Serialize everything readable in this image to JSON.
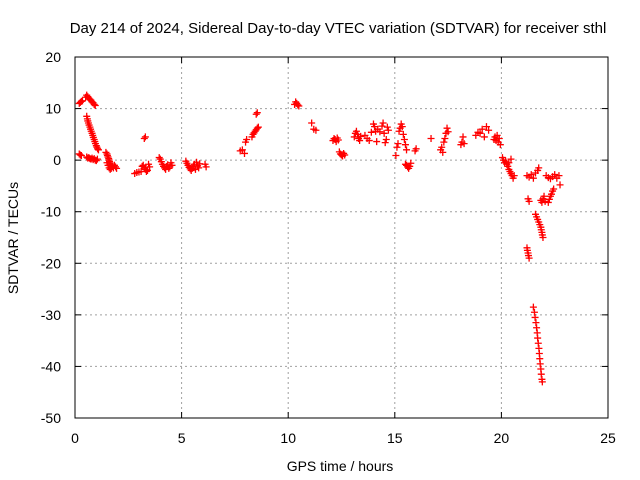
{
  "chart_data": {
    "type": "scatter",
    "title": "Day 214 of 2024, Sidereal Day-to-day VTEC variation (SDTVAR) for receiver sthl",
    "xlabel": "GPS time / hours",
    "ylabel": "SDTVAR / TECUs",
    "xlim": [
      0,
      25
    ],
    "ylim": [
      -50,
      20
    ],
    "xticks": [
      0,
      5,
      10,
      15,
      20,
      25
    ],
    "yticks": [
      -50,
      -40,
      -30,
      -20,
      -10,
      0,
      10,
      20
    ],
    "grid": true,
    "marker": "+",
    "color": "#ff0000",
    "series": [
      {
        "name": "sthl",
        "points": [
          [
            0.2,
            11
          ],
          [
            0.25,
            11.2
          ],
          [
            0.3,
            11.4
          ],
          [
            0.35,
            11.5
          ],
          [
            0.5,
            12.2
          ],
          [
            0.55,
            12.6
          ],
          [
            0.6,
            12.3
          ],
          [
            0.65,
            12.0
          ],
          [
            0.7,
            11.8
          ],
          [
            0.75,
            11.6
          ],
          [
            0.8,
            11.3
          ],
          [
            0.85,
            11.1
          ],
          [
            0.9,
            10.8
          ],
          [
            0.95,
            10.6
          ],
          [
            0.55,
            8.5
          ],
          [
            0.58,
            8.0
          ],
          [
            0.6,
            7.6
          ],
          [
            0.63,
            7.2
          ],
          [
            0.66,
            6.8
          ],
          [
            0.7,
            6.4
          ],
          [
            0.73,
            6.0
          ],
          [
            0.76,
            5.6
          ],
          [
            0.8,
            5.2
          ],
          [
            0.83,
            4.8
          ],
          [
            0.86,
            4.4
          ],
          [
            0.9,
            4.0
          ],
          [
            0.93,
            3.6
          ],
          [
            0.96,
            3.2
          ],
          [
            1.0,
            2.8
          ],
          [
            1.03,
            2.5
          ],
          [
            1.06,
            2.2
          ],
          [
            1.1,
            2.0
          ],
          [
            0.2,
            1.2
          ],
          [
            0.25,
            1.0
          ],
          [
            0.3,
            0.9
          ],
          [
            0.55,
            0.6
          ],
          [
            0.6,
            0.4
          ],
          [
            0.65,
            0.5
          ],
          [
            0.7,
            0.3
          ],
          [
            0.75,
            0.2
          ],
          [
            0.8,
            0.4
          ],
          [
            0.85,
            0.1
          ],
          [
            0.9,
            0.3
          ],
          [
            0.95,
            0.0
          ],
          [
            1.0,
            -0.1
          ],
          [
            1.05,
            0.2
          ],
          [
            1.45,
            1.5
          ],
          [
            1.5,
            1.2
          ],
          [
            1.52,
            0.9
          ],
          [
            1.55,
            0.6
          ],
          [
            1.58,
            0.3
          ],
          [
            1.6,
            0.0
          ],
          [
            1.62,
            -0.3
          ],
          [
            1.65,
            -0.6
          ],
          [
            1.68,
            -0.9
          ],
          [
            1.7,
            -1.2
          ],
          [
            1.5,
            -0.5
          ],
          [
            1.55,
            -1.0
          ],
          [
            1.6,
            -1.5
          ],
          [
            1.65,
            -1.8
          ],
          [
            1.7,
            -1.6
          ],
          [
            1.75,
            -1.2
          ],
          [
            1.8,
            -1.5
          ],
          [
            1.85,
            -1.0
          ],
          [
            1.9,
            -1.3
          ],
          [
            1.95,
            -1.6
          ],
          [
            2.8,
            -2.6
          ],
          [
            2.9,
            -2.4
          ],
          [
            3.0,
            -2.3
          ],
          [
            3.1,
            -2.2
          ],
          [
            3.15,
            -1.2
          ],
          [
            3.2,
            -1.0
          ],
          [
            3.25,
            -1.5
          ],
          [
            3.3,
            -1.8
          ],
          [
            3.35,
            -2.2
          ],
          [
            3.4,
            -2.0
          ],
          [
            3.45,
            -0.8
          ],
          [
            3.5,
            -1.3
          ],
          [
            3.25,
            4.2
          ],
          [
            3.3,
            4.5
          ],
          [
            3.95,
            0.5
          ],
          [
            4.0,
            0.2
          ],
          [
            4.05,
            -0.3
          ],
          [
            4.1,
            -0.8
          ],
          [
            4.15,
            -1.2
          ],
          [
            4.2,
            -1.5
          ],
          [
            4.25,
            -1.8
          ],
          [
            4.3,
            -1.2
          ],
          [
            4.35,
            -0.9
          ],
          [
            4.4,
            -1.6
          ],
          [
            4.45,
            -1.3
          ],
          [
            4.5,
            -0.5
          ],
          [
            4.55,
            -1.0
          ],
          [
            5.2,
            -0.2
          ],
          [
            5.25,
            -0.6
          ],
          [
            5.3,
            -1.0
          ],
          [
            5.35,
            -1.4
          ],
          [
            5.4,
            -1.7
          ],
          [
            5.45,
            -2.0
          ],
          [
            5.5,
            -1.6
          ],
          [
            5.55,
            -1.2
          ],
          [
            5.6,
            -0.8
          ],
          [
            5.65,
            -1.8
          ],
          [
            5.7,
            -0.4
          ],
          [
            5.75,
            -1.1
          ],
          [
            5.8,
            -1.5
          ],
          [
            5.85,
            -0.7
          ],
          [
            6.1,
            -0.8
          ],
          [
            6.15,
            -1.3
          ],
          [
            7.75,
            1.8
          ],
          [
            7.85,
            2.0
          ],
          [
            7.95,
            1.3
          ],
          [
            8.0,
            3.5
          ],
          [
            8.05,
            4.0
          ],
          [
            8.3,
            4.5
          ],
          [
            8.35,
            5.0
          ],
          [
            8.4,
            5.3
          ],
          [
            8.45,
            5.6
          ],
          [
            8.5,
            5.9
          ],
          [
            8.55,
            6.2
          ],
          [
            8.6,
            6.4
          ],
          [
            8.5,
            8.9
          ],
          [
            8.55,
            9.2
          ],
          [
            10.3,
            10.8
          ],
          [
            10.35,
            11.3
          ],
          [
            10.4,
            11.0
          ],
          [
            10.45,
            10.7
          ],
          [
            10.5,
            10.5
          ],
          [
            11.1,
            7.2
          ],
          [
            11.2,
            6.0
          ],
          [
            11.3,
            5.8
          ],
          [
            12.1,
            3.8
          ],
          [
            12.15,
            4.2
          ],
          [
            12.2,
            4.0
          ],
          [
            12.25,
            3.6
          ],
          [
            12.3,
            4.3
          ],
          [
            12.35,
            3.9
          ],
          [
            12.4,
            1.6
          ],
          [
            12.45,
            1.2
          ],
          [
            12.5,
            1.0
          ],
          [
            12.55,
            0.8
          ],
          [
            12.6,
            1.3
          ],
          [
            12.65,
            1.0
          ],
          [
            13.1,
            4.5
          ],
          [
            13.15,
            5.2
          ],
          [
            13.2,
            5.6
          ],
          [
            13.25,
            5.0
          ],
          [
            13.3,
            4.2
          ],
          [
            13.35,
            3.8
          ],
          [
            13.4,
            4.6
          ],
          [
            13.6,
            4.8
          ],
          [
            13.7,
            4.2
          ],
          [
            13.8,
            3.8
          ],
          [
            13.9,
            5.4
          ],
          [
            14.0,
            7.0
          ],
          [
            14.05,
            6.5
          ],
          [
            14.1,
            5.6
          ],
          [
            14.15,
            3.6
          ],
          [
            14.2,
            6.0
          ],
          [
            14.3,
            5.5
          ],
          [
            14.4,
            6.6
          ],
          [
            14.45,
            7.2
          ],
          [
            14.5,
            5.2
          ],
          [
            14.55,
            3.4
          ],
          [
            14.6,
            4.0
          ],
          [
            14.65,
            6.4
          ],
          [
            14.7,
            5.8
          ],
          [
            15.05,
            0.9
          ],
          [
            15.1,
            2.5
          ],
          [
            15.15,
            3.2
          ],
          [
            15.2,
            5.6
          ],
          [
            15.25,
            6.2
          ],
          [
            15.3,
            7.0
          ],
          [
            15.35,
            6.5
          ],
          [
            15.4,
            5.0
          ],
          [
            15.45,
            4.0
          ],
          [
            15.5,
            3.0
          ],
          [
            15.55,
            2.0
          ],
          [
            15.5,
            -0.8
          ],
          [
            15.55,
            -1.0
          ],
          [
            15.6,
            -1.3
          ],
          [
            15.65,
            -1.6
          ],
          [
            15.7,
            -1.2
          ],
          [
            15.75,
            -0.6
          ],
          [
            15.95,
            1.8
          ],
          [
            16.0,
            2.2
          ],
          [
            16.7,
            4.2
          ],
          [
            17.15,
            2.0
          ],
          [
            17.2,
            2.5
          ],
          [
            17.25,
            1.5
          ],
          [
            17.3,
            3.5
          ],
          [
            17.35,
            4.2
          ],
          [
            17.4,
            5.2
          ],
          [
            17.45,
            6.2
          ],
          [
            17.5,
            5.5
          ],
          [
            18.1,
            3.0
          ],
          [
            18.15,
            3.5
          ],
          [
            18.2,
            4.5
          ],
          [
            18.25,
            3.2
          ],
          [
            18.8,
            4.8
          ],
          [
            18.9,
            5.4
          ],
          [
            19.0,
            5.2
          ],
          [
            19.1,
            6.0
          ],
          [
            19.2,
            4.5
          ],
          [
            19.3,
            6.5
          ],
          [
            19.4,
            5.8
          ],
          [
            19.65,
            4.0
          ],
          [
            19.7,
            4.5
          ],
          [
            19.75,
            3.8
          ],
          [
            19.8,
            4.8
          ],
          [
            19.85,
            3.5
          ],
          [
            19.9,
            4.2
          ],
          [
            19.95,
            3.0
          ],
          [
            20.05,
            0.5
          ],
          [
            20.1,
            0.0
          ],
          [
            20.15,
            -0.5
          ],
          [
            20.2,
            -0.2
          ],
          [
            20.25,
            -0.8
          ],
          [
            20.3,
            -1.2
          ],
          [
            20.35,
            -1.8
          ],
          [
            20.4,
            -2.2
          ],
          [
            20.45,
            -2.6
          ],
          [
            20.5,
            -3.0
          ],
          [
            20.55,
            -3.5
          ],
          [
            20.6,
            -3.0
          ],
          [
            20.35,
            -0.5
          ],
          [
            20.45,
            0.2
          ],
          [
            21.2,
            -3.0
          ],
          [
            21.3,
            -3.3
          ],
          [
            21.4,
            -2.8
          ],
          [
            21.5,
            -3.5
          ],
          [
            21.6,
            -2.5
          ],
          [
            21.7,
            -2.0
          ],
          [
            21.75,
            -1.5
          ],
          [
            21.25,
            -7.5
          ],
          [
            21.3,
            -8.0
          ],
          [
            21.6,
            -10.5
          ],
          [
            21.65,
            -11.0
          ],
          [
            21.7,
            -11.5
          ],
          [
            21.75,
            -12.0
          ],
          [
            21.8,
            -12.5
          ],
          [
            21.85,
            -13.0
          ],
          [
            21.87,
            -13.5
          ],
          [
            21.9,
            -14.0
          ],
          [
            21.92,
            -14.5
          ],
          [
            21.95,
            -15.0
          ],
          [
            21.2,
            -17.0
          ],
          [
            21.22,
            -17.5
          ],
          [
            21.25,
            -18.0
          ],
          [
            21.27,
            -18.5
          ],
          [
            21.3,
            -19.0
          ],
          [
            21.5,
            -28.5
          ],
          [
            21.55,
            -29.5
          ],
          [
            21.58,
            -30.5
          ],
          [
            21.62,
            -31.5
          ],
          [
            21.65,
            -32.5
          ],
          [
            21.68,
            -33.5
          ],
          [
            21.7,
            -34.5
          ],
          [
            21.73,
            -35.5
          ],
          [
            21.76,
            -36.5
          ],
          [
            21.78,
            -37.5
          ],
          [
            21.8,
            -38.5
          ],
          [
            21.82,
            -39.5
          ],
          [
            21.85,
            -40.5
          ],
          [
            21.87,
            -41.5
          ],
          [
            21.9,
            -42.5
          ],
          [
            21.92,
            -43.0
          ],
          [
            21.85,
            -7.8
          ],
          [
            21.9,
            -8.2
          ],
          [
            21.95,
            -7.5
          ],
          [
            22.0,
            -7.0
          ],
          [
            22.05,
            -8.0
          ],
          [
            22.2,
            -8.2
          ],
          [
            22.25,
            -7.6
          ],
          [
            22.3,
            -7.0
          ],
          [
            22.35,
            -6.6
          ],
          [
            22.4,
            -6.0
          ],
          [
            22.45,
            -5.6
          ],
          [
            22.1,
            -3.0
          ],
          [
            22.2,
            -3.4
          ],
          [
            22.3,
            -3.6
          ],
          [
            22.4,
            -3.2
          ],
          [
            22.5,
            -2.8
          ],
          [
            22.6,
            -3.5
          ],
          [
            22.7,
            -3.0
          ],
          [
            22.75,
            -4.8
          ]
        ]
      }
    ]
  }
}
